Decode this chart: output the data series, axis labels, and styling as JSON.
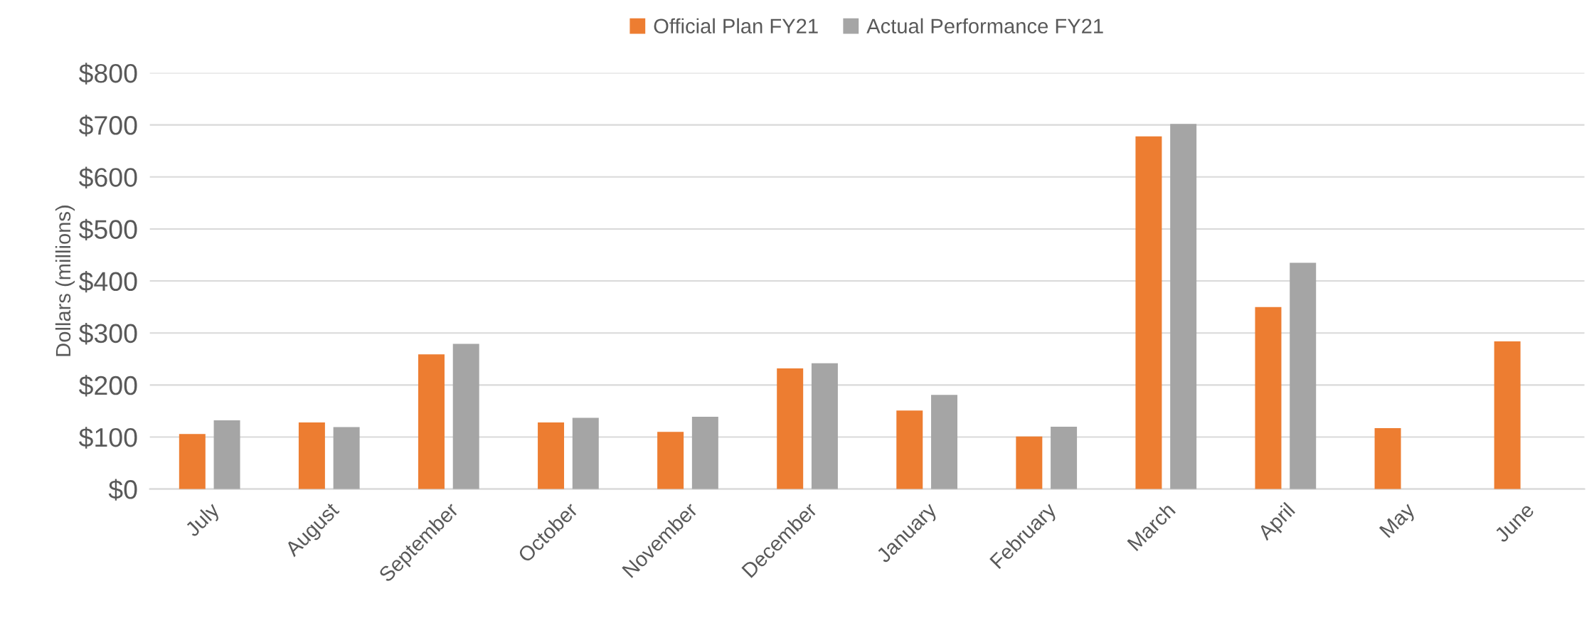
{
  "chart_data": {
    "type": "bar",
    "ylabel": "Dollars (millions)",
    "categories": [
      "July",
      "August",
      "September",
      "October",
      "November",
      "December",
      "January",
      "February",
      "March",
      "April",
      "May",
      "June"
    ],
    "series": [
      {
        "name": "Official Plan FY21",
        "color": "#ed7d31",
        "values": [
          106,
          128,
          259,
          128,
          110,
          232,
          151,
          101,
          678,
          350,
          117,
          284
        ]
      },
      {
        "name": "Actual Performance FY21",
        "color": "#a5a5a5",
        "values": [
          132,
          119,
          279,
          137,
          139,
          242,
          181,
          120,
          702,
          435,
          null,
          null
        ]
      }
    ],
    "ylim": [
      0,
      800
    ],
    "yticks": [
      {
        "value": 0,
        "label": "$0"
      },
      {
        "value": 100,
        "label": "$100"
      },
      {
        "value": 200,
        "label": "$200"
      },
      {
        "value": 300,
        "label": "$300"
      },
      {
        "value": 400,
        "label": "$400"
      },
      {
        "value": 500,
        "label": "$500"
      },
      {
        "value": 600,
        "label": "$600"
      },
      {
        "value": 700,
        "label": "$700"
      },
      {
        "value": 800,
        "label": "$800"
      }
    ],
    "grid": "y",
    "legend": "top"
  }
}
